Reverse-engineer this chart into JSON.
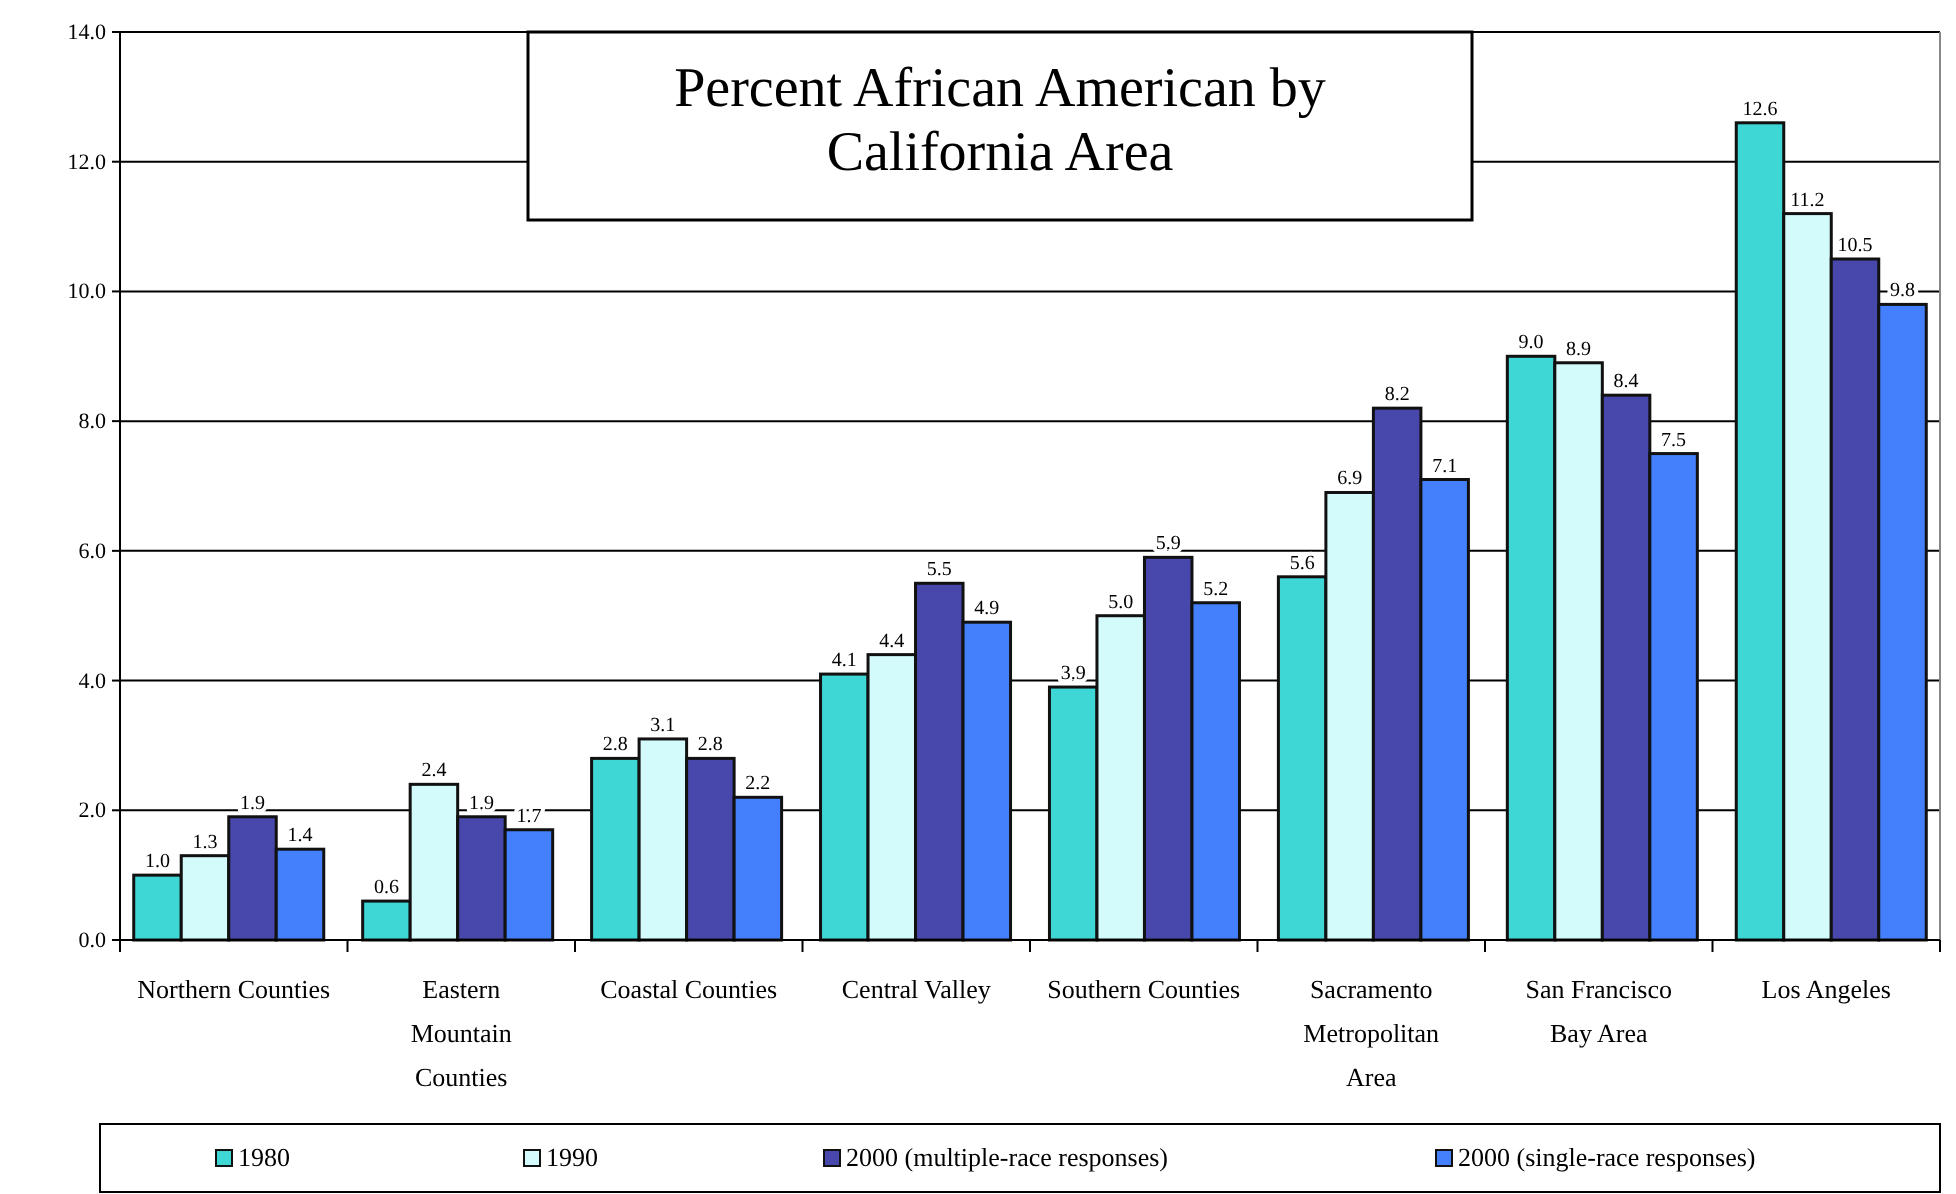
{
  "chart_data": {
    "type": "bar",
    "title": "Percent African American by California Area",
    "categories": [
      "Northern Counties",
      "Eastern Mountain Counties",
      "Coastal Counties",
      "Central Valley",
      "Southern Counties",
      "Sacramento Metropolitan Area",
      "San Francisco Bay Area",
      "Los Angeles"
    ],
    "series": [
      {
        "name": "1980",
        "color": "#3fd6d6",
        "values": [
          1,
          0.6,
          2.8,
          4.1,
          3.9,
          5.6,
          9,
          12.6
        ],
        "value_labels": [
          "1.0",
          "0.6",
          "2.8",
          "4.1",
          "3.9",
          "5.6",
          "9.0",
          "12.6"
        ]
      },
      {
        "name": "1990",
        "color": "#d4fbfb",
        "values": [
          1.3,
          2.4,
          3.1,
          4.4,
          5,
          6.9,
          8.9,
          11.2
        ],
        "value_labels": [
          "1.3",
          "2.4",
          "3.1",
          "4.4",
          "5.0",
          "6.9",
          "8.9",
          "11.2"
        ]
      },
      {
        "name": "2000 (multiple-race responses)",
        "color": "#4848ac",
        "values": [
          1.9,
          1.9,
          2.8,
          5.5,
          5.9,
          8.2,
          8.4,
          10.5
        ],
        "value_labels": [
          "1.9",
          "1.9",
          "2.8",
          "5.5",
          "5.9",
          "8.2",
          "8.4",
          "10.5"
        ]
      },
      {
        "name": "2000 (single-race responses)",
        "color": "#4480fc",
        "values": [
          1.4,
          1.7,
          2.2,
          4.9,
          5.2,
          7.1,
          7.5,
          9.8
        ],
        "value_labels": [
          "1.4",
          "1.7",
          "2.2",
          "4.9",
          "5.2",
          "7.1",
          "7.5",
          "9.8"
        ]
      }
    ],
    "ylim": [
      0,
      14
    ],
    "yticks": [
      {
        "value": 0,
        "label": "0.0"
      },
      {
        "value": 2,
        "label": "2.0"
      },
      {
        "value": 4,
        "label": "4.0"
      },
      {
        "value": 6,
        "label": "6.0"
      },
      {
        "value": 8,
        "label": "8.0"
      },
      {
        "value": 10,
        "label": "10.0"
      },
      {
        "value": 12,
        "label": "12.0"
      },
      {
        "value": 14,
        "label": "14.0"
      }
    ],
    "grid": "y",
    "legend": "bottom"
  }
}
